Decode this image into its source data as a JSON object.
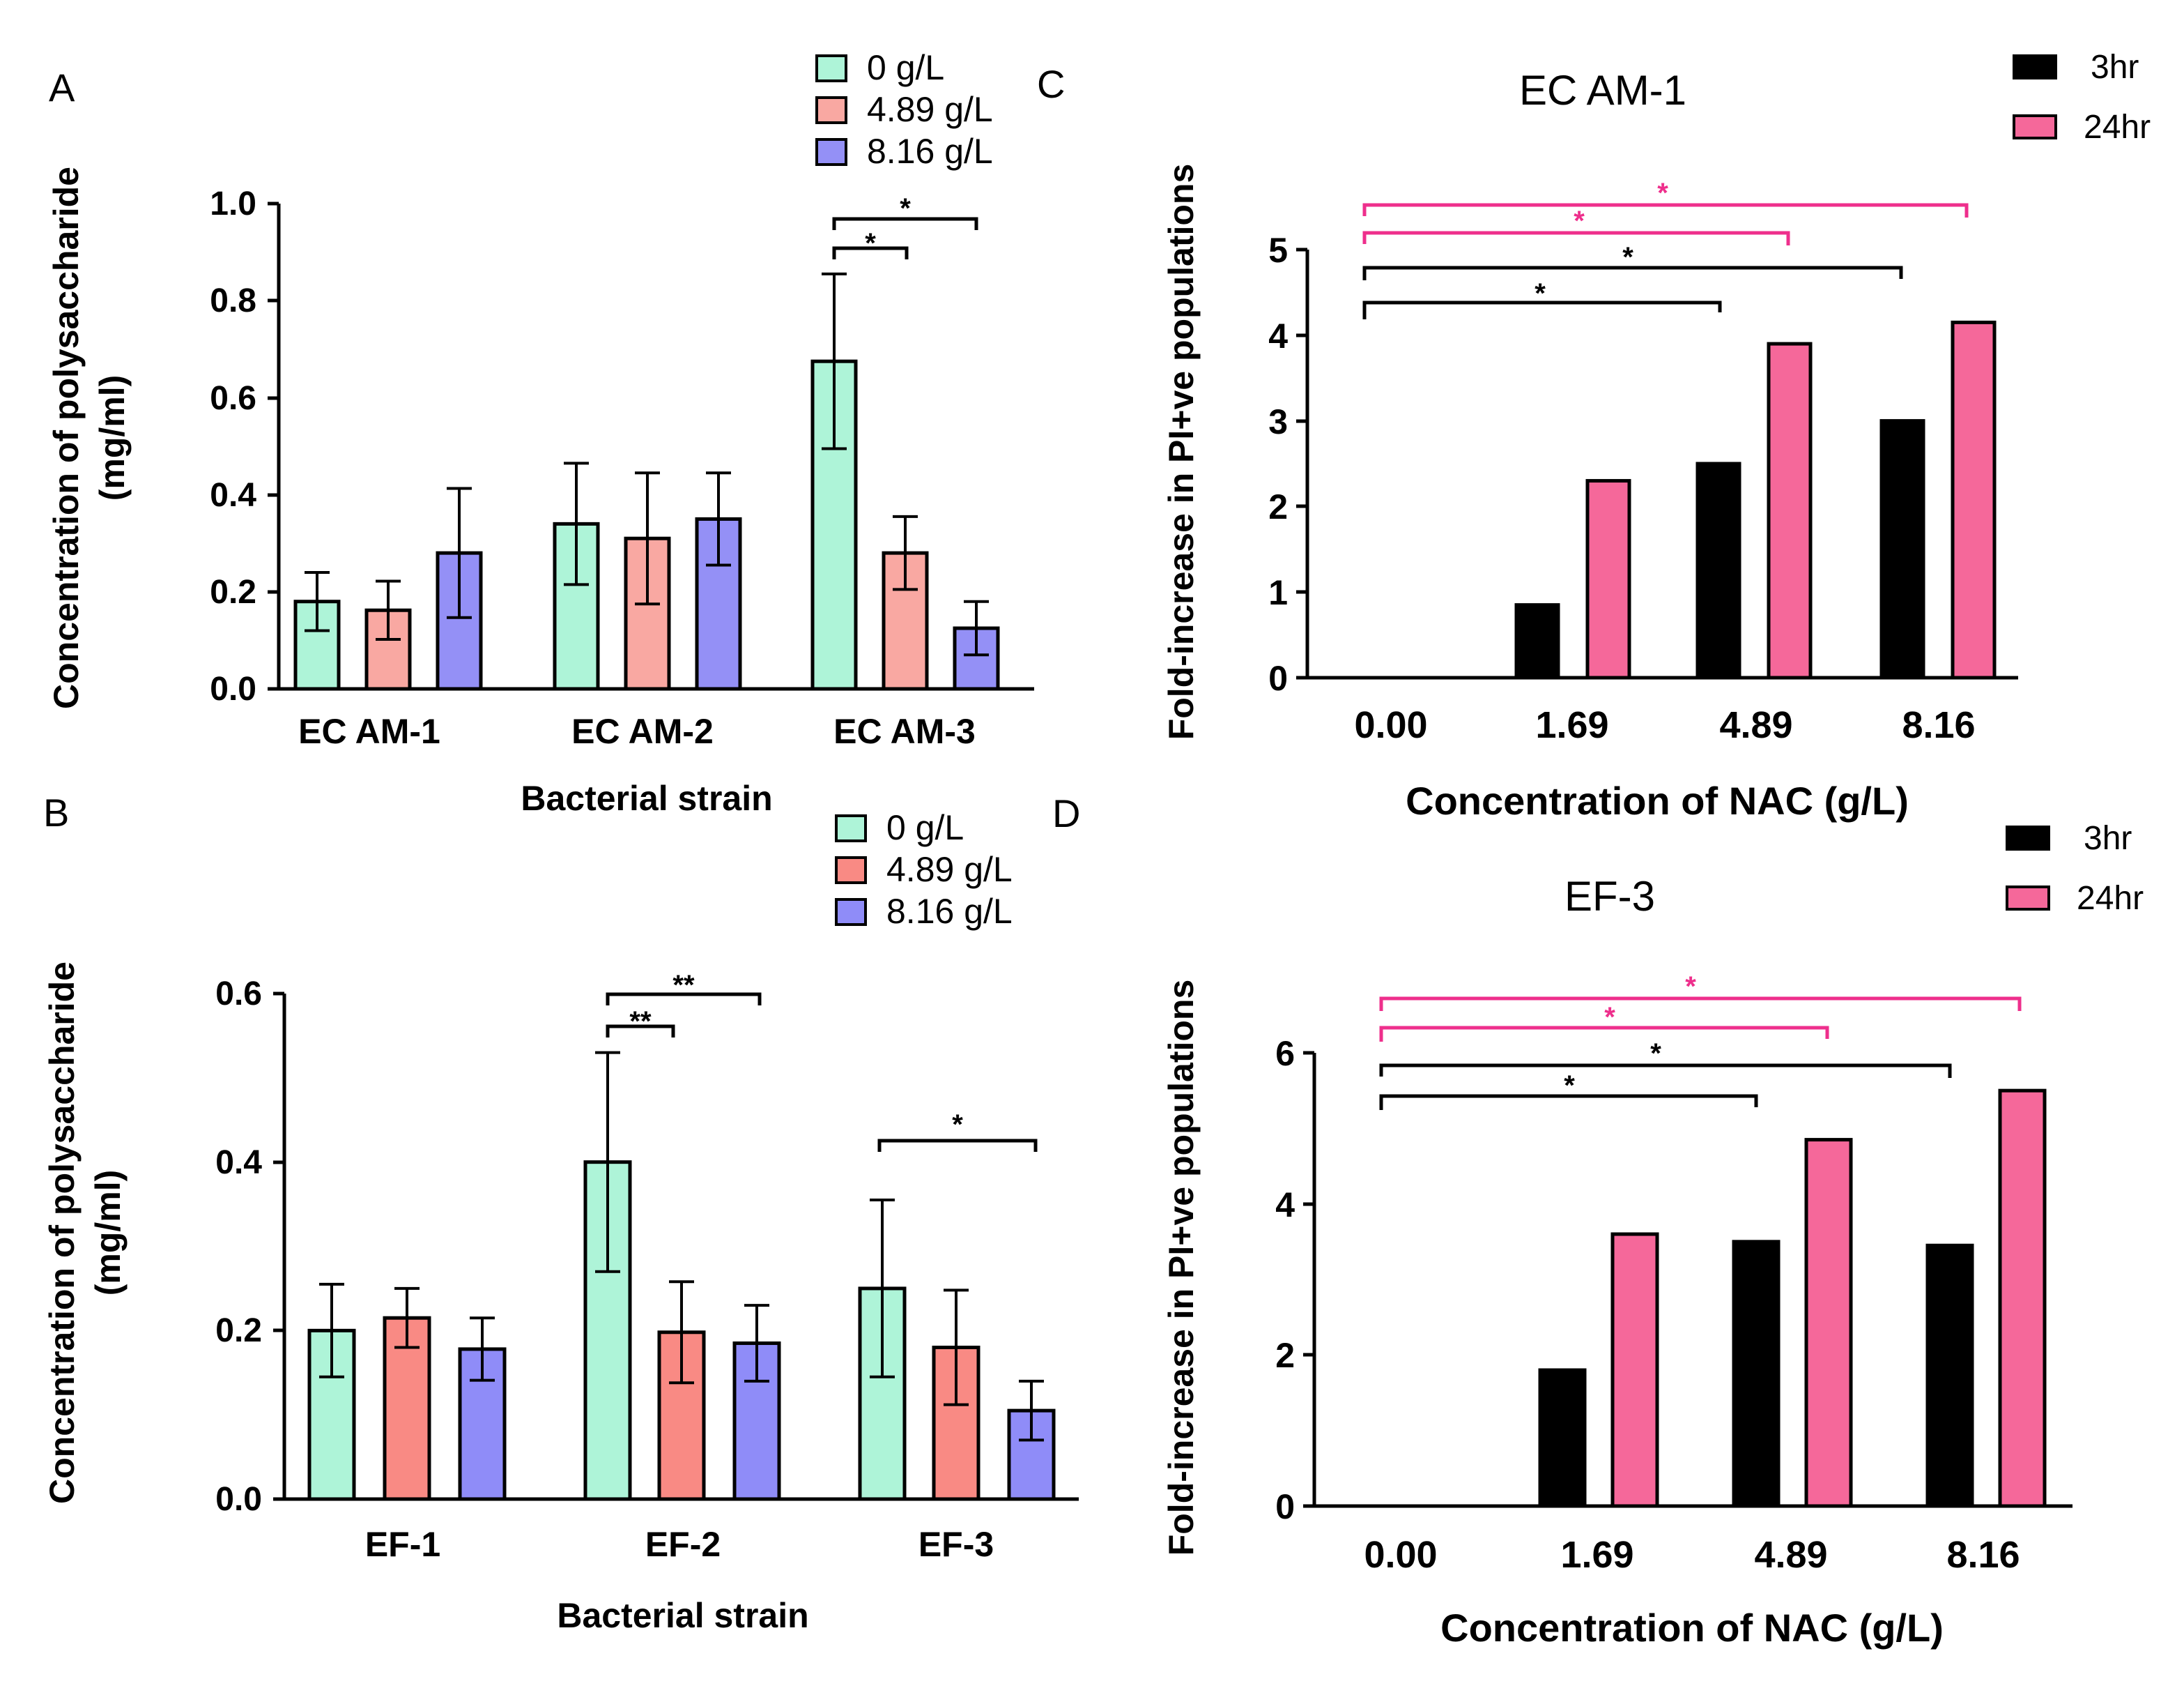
{
  "chart_data": [
    {
      "id": "A",
      "panel_label": "A",
      "type": "bar",
      "title": "",
      "xlabel": "Bacterial strain",
      "ylabel": "Concentration of polysaccharide",
      "ylabel2": "(mg/ml)",
      "ylim": [
        0,
        1.0
      ],
      "yticks": [
        0.0,
        0.2,
        0.4,
        0.6,
        0.8,
        1.0
      ],
      "ytick_labels": [
        "0.0",
        "0.2",
        "0.4",
        "0.6",
        "0.8",
        "1.0"
      ],
      "categories": [
        "EC AM-1",
        "EC AM-2",
        "EC AM-3"
      ],
      "legend": {
        "placement": "top-right",
        "entries": [
          "0 g/L",
          "4.89 g/L",
          "8.16 g/L"
        ]
      },
      "series": [
        {
          "name": "0 g/L",
          "color": "#aef4d8",
          "values": [
            0.18,
            0.34,
            0.675
          ],
          "errors": [
            0.06,
            0.125,
            0.18
          ]
        },
        {
          "name": "4.89 g/L",
          "color": "#f9a8a2",
          "values": [
            0.162,
            0.31,
            0.28
          ],
          "errors": [
            0.06,
            0.135,
            0.075
          ]
        },
        {
          "name": "8.16 g/L",
          "color": "#9490f6",
          "values": [
            0.28,
            0.35,
            0.125
          ],
          "errors": [
            0.133,
            0.095,
            0.055
          ]
        }
      ],
      "significance": [
        {
          "label": "*",
          "from": "EC AM-3 / 0 g/L",
          "to": "EC AM-3 / 4.89 g/L",
          "color": "#000000"
        },
        {
          "label": "*",
          "from": "EC AM-3 / 0 g/L",
          "to": "EC AM-3 / 8.16 g/L",
          "color": "#000000"
        }
      ]
    },
    {
      "id": "B",
      "panel_label": "B",
      "type": "bar",
      "title": "",
      "xlabel": "Bacterial strain",
      "ylabel": "Concentration of polysaccharide",
      "ylabel2": "(mg/ml)",
      "ylim": [
        0,
        0.6
      ],
      "yticks": [
        0.0,
        0.2,
        0.4,
        0.6
      ],
      "ytick_labels": [
        "0.0",
        "0.2",
        "0.4",
        "0.6"
      ],
      "categories": [
        "EF-1",
        "EF-2",
        "EF-3"
      ],
      "legend": {
        "placement": "top-right",
        "entries": [
          "0 g/L",
          "4.89 g/L",
          "8.16 g/L"
        ]
      },
      "series": [
        {
          "name": "0 g/L",
          "color": "#aef4d8",
          "values": [
            0.2,
            0.4,
            0.25
          ],
          "errors": [
            0.055,
            0.13,
            0.105
          ]
        },
        {
          "name": "4.89 g/L",
          "color": "#f98a84",
          "values": [
            0.215,
            0.198,
            0.18
          ],
          "errors": [
            0.035,
            0.06,
            0.068
          ]
        },
        {
          "name": "8.16 g/L",
          "color": "#8f8cf8",
          "values": [
            0.178,
            0.185,
            0.105
          ],
          "errors": [
            0.037,
            0.045,
            0.035
          ]
        }
      ],
      "significance": [
        {
          "label": "**",
          "from": "EF-2 / 0 g/L",
          "to": "EF-2 / 4.89 g/L",
          "color": "#000000"
        },
        {
          "label": "**",
          "from": "EF-2 / 0 g/L",
          "to": "EF-2 / 8.16 g/L",
          "color": "#000000"
        },
        {
          "label": "*",
          "from": "EF-3 / 0 g/L",
          "to": "EF-3 / 8.16 g/L",
          "color": "#000000"
        }
      ]
    },
    {
      "id": "C",
      "panel_label": "C",
      "type": "bar",
      "title": "EC AM-1",
      "xlabel": "Concentration of NAC (g/L)",
      "ylabel": "Fold-increase in PI+ve populations",
      "ylim": [
        0,
        5
      ],
      "yticks": [
        0,
        1,
        2,
        3,
        4,
        5
      ],
      "ytick_labels": [
        "0",
        "1",
        "2",
        "3",
        "4",
        "5"
      ],
      "categories": [
        "0.00",
        "1.69",
        "4.89",
        "8.16"
      ],
      "legend": {
        "placement": "top-right",
        "entries": [
          "3hr",
          "24hr"
        ]
      },
      "series": [
        {
          "name": "3hr",
          "color": "#000000",
          "values": [
            0,
            0.85,
            2.5,
            3.0
          ]
        },
        {
          "name": "24hr",
          "color": "#f5689a",
          "values": [
            0,
            2.3,
            3.9,
            4.15
          ]
        }
      ],
      "significance": [
        {
          "label": "*",
          "from": "0.00",
          "to": "4.89 / 3hr",
          "color": "#000000"
        },
        {
          "label": "*",
          "from": "0.00",
          "to": "8.16 / 3hr",
          "color": "#000000"
        },
        {
          "label": "*",
          "from": "0.00",
          "to": "4.89 / 24hr",
          "color": "#ee2f8c"
        },
        {
          "label": "*",
          "from": "0.00",
          "to": "8.16 / 24hr",
          "color": "#ee2f8c"
        }
      ]
    },
    {
      "id": "D",
      "panel_label": "D",
      "type": "bar",
      "title": "EF-3",
      "xlabel": "Concentration of NAC (g/L)",
      "ylabel": "Fold-increase in PI+ve populations",
      "ylim": [
        0,
        6
      ],
      "yticks": [
        0,
        2,
        4,
        6
      ],
      "ytick_labels": [
        "0",
        "2",
        "4",
        "6"
      ],
      "categories": [
        "0.00",
        "1.69",
        "4.89",
        "8.16"
      ],
      "legend": {
        "placement": "top-right",
        "entries": [
          "3hr",
          "24hr"
        ]
      },
      "series": [
        {
          "name": "3hr",
          "color": "#000000",
          "values": [
            0,
            1.8,
            3.5,
            3.45
          ]
        },
        {
          "name": "24hr",
          "color": "#f5689a",
          "values": [
            0,
            3.6,
            4.85,
            5.5
          ]
        }
      ],
      "significance": [
        {
          "label": "*",
          "from": "0.00",
          "to": "4.89 / 3hr",
          "color": "#000000"
        },
        {
          "label": "*",
          "from": "0.00",
          "to": "8.16 / 3hr",
          "color": "#000000"
        },
        {
          "label": "*",
          "from": "0.00",
          "to": "4.89 / 24hr",
          "color": "#ee2f8c"
        },
        {
          "label": "*",
          "from": "0.00",
          "to": "8.16 / 24hr",
          "color": "#ee2f8c"
        }
      ]
    }
  ]
}
